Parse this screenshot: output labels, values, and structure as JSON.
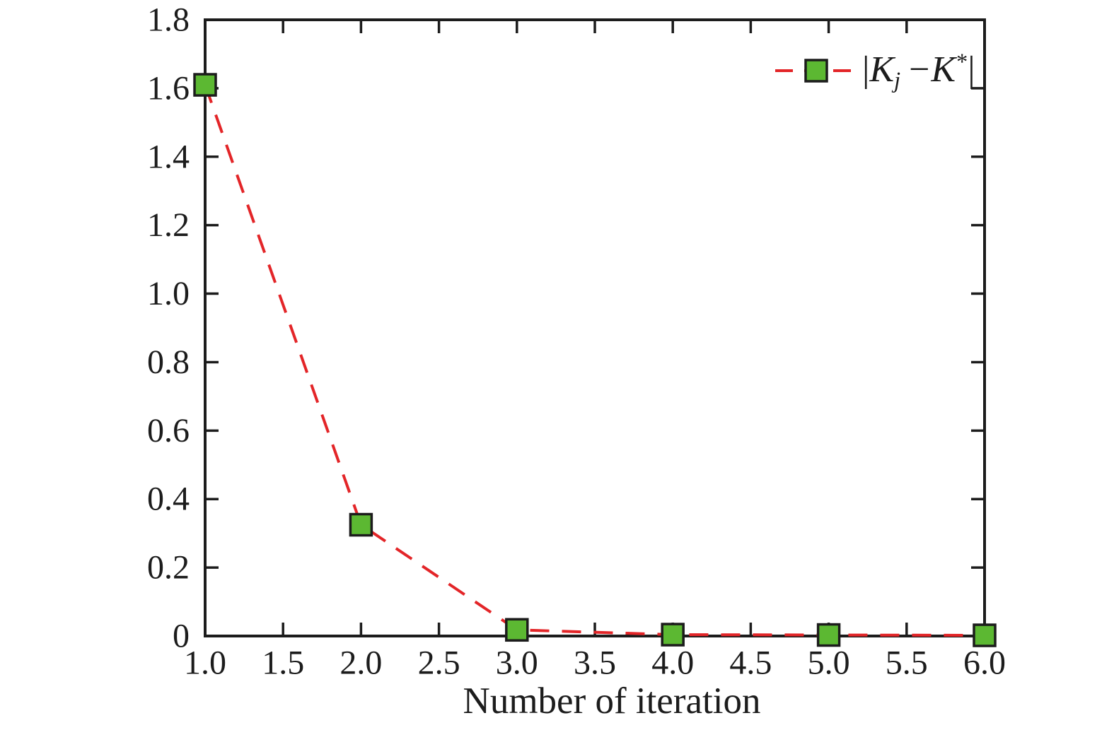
{
  "figure": {
    "background": "#ffffff",
    "text_color": "#1c1c1c"
  },
  "legend": {
    "label": {
      "bar_left": "|",
      "k1": "K",
      "sub": "j",
      "minus": "−",
      "k2": "K",
      "sup": "*",
      "bar_right": "|"
    },
    "line_color": "#e32528",
    "marker_fill": "#5cb832",
    "marker_edge": "#1c1c1c",
    "position": "upper right"
  },
  "chart_data": {
    "type": "line",
    "title": "",
    "xlabel": "Number of iteration",
    "ylabel": "",
    "xlim": [
      1.0,
      6.0
    ],
    "ylim": [
      0,
      1.8
    ],
    "x_tick_values": [
      1.0,
      1.5,
      2.0,
      2.5,
      3.0,
      3.5,
      4.0,
      4.5,
      5.0,
      5.5,
      6.0
    ],
    "x_ticks": [
      "1.0",
      "1.5",
      "2.0",
      "2.5",
      "3.0",
      "3.5",
      "4.0",
      "4.5",
      "5.0",
      "5.5",
      "6.0"
    ],
    "y_tick_values": [
      0,
      0.2,
      0.4,
      0.6,
      0.8,
      1.0,
      1.2,
      1.4,
      1.6,
      1.8
    ],
    "y_ticks": [
      "0",
      "0.2",
      "0.4",
      "0.6",
      "0.8",
      "1.0",
      "1.2",
      "1.4",
      "1.6",
      "1.8"
    ],
    "grid": false,
    "box": true,
    "axis_color": "#1c1c1c",
    "legend_position": "upper right",
    "series": [
      {
        "name": "|K_j − K*|",
        "x": [
          1,
          2,
          3,
          4,
          5,
          6
        ],
        "y": [
          1.61,
          0.325,
          0.018,
          0.004,
          0.003,
          0.002
        ],
        "line_color": "#e32528",
        "line_style": "dashed",
        "line_width": 4,
        "marker": "square",
        "marker_size": 30,
        "marker_fill": "#5cb832",
        "marker_edge": "#1c1c1c"
      }
    ]
  }
}
